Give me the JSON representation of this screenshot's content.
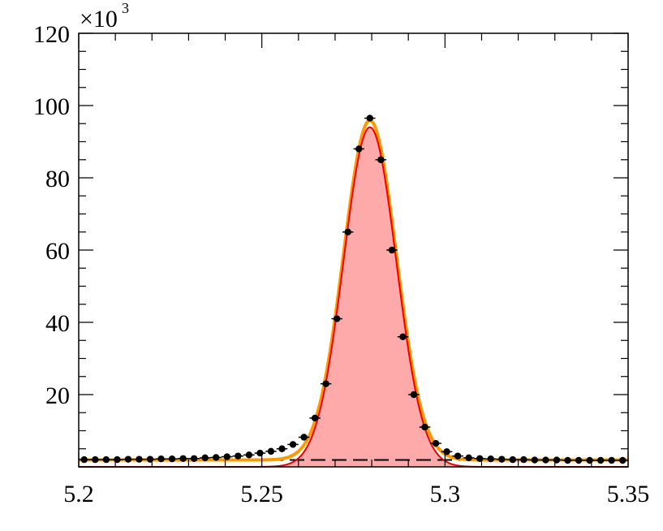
{
  "chart_data": {
    "type": "scatter",
    "title": "",
    "xlabel": "",
    "ylabel": "",
    "y_multiplier": {
      "base": "×10",
      "exponent": "3"
    },
    "xlim": [
      5.2,
      5.35
    ],
    "ylim": [
      0,
      120
    ],
    "x_ticks": [
      "5.2",
      "5.25",
      "5.3",
      "5.35"
    ],
    "y_ticks": [
      "20",
      "40",
      "60",
      "80",
      "100",
      "120"
    ],
    "grid": false,
    "legend": "none",
    "colors": {
      "data": "#000000",
      "total_fit": "#ff9900",
      "signal_line": "#ee0000",
      "signal_fill": "#ffaaaa",
      "background_line": "#000000"
    },
    "signal_model": {
      "mean": 5.2795,
      "sigma": 0.0072,
      "amplitude": 94
    },
    "background_level": 1.9,
    "series": [
      {
        "role": "data",
        "x": [
          5.2015,
          5.2045,
          5.2075,
          5.2105,
          5.2135,
          5.2165,
          5.2195,
          5.2225,
          5.2255,
          5.2285,
          5.2315,
          5.2345,
          5.2375,
          5.2405,
          5.2435,
          5.2465,
          5.2495,
          5.2525,
          5.2555,
          5.2585,
          5.2615,
          5.2645,
          5.2675,
          5.2705,
          5.2735,
          5.2765,
          5.2795,
          5.2825,
          5.2855,
          5.2885,
          5.2915,
          5.2945,
          5.2975,
          5.3005,
          5.3035,
          5.3065,
          5.3095,
          5.3125,
          5.3155,
          5.3185,
          5.3215,
          5.3245,
          5.3275,
          5.3305,
          5.3335,
          5.3365,
          5.3395,
          5.3425,
          5.3455,
          5.3485
        ],
        "values": [
          2.0,
          2.0,
          2.0,
          2.0,
          2.1,
          2.1,
          2.1,
          2.2,
          2.2,
          2.3,
          2.3,
          2.5,
          2.6,
          2.8,
          3.0,
          3.3,
          3.8,
          4.3,
          5.0,
          6.2,
          8.2,
          13.5,
          23,
          41,
          65,
          88,
          96.5,
          85,
          60,
          36,
          20,
          11,
          6.5,
          4.2,
          3.0,
          2.5,
          2.3,
          2.2,
          2.1,
          2.0,
          2.0,
          1.9,
          1.9,
          1.9,
          1.8,
          1.8,
          1.8,
          1.8,
          1.8,
          1.8
        ]
      },
      {
        "role": "total-fit"
      },
      {
        "role": "signal"
      },
      {
        "role": "background"
      }
    ]
  }
}
